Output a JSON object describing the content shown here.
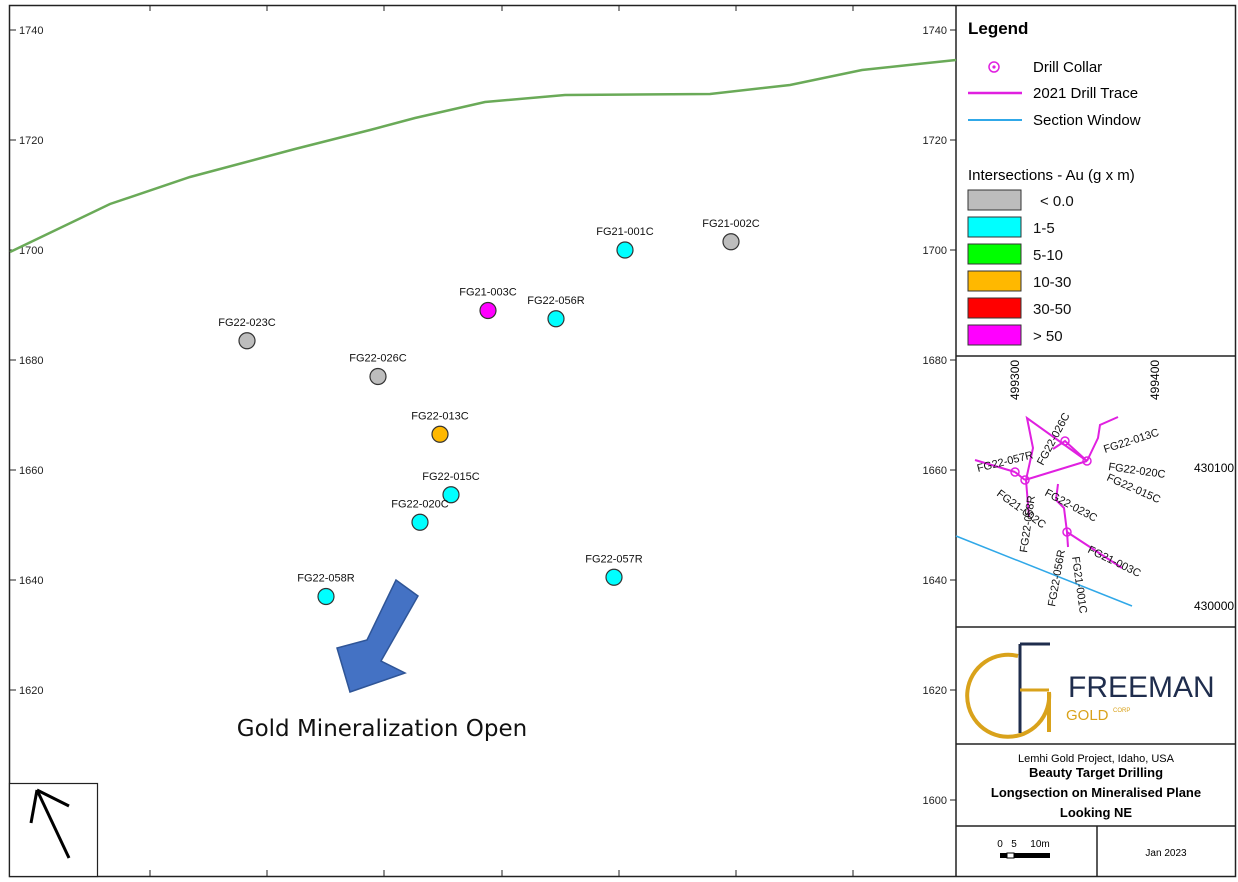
{
  "section": {
    "elevation_ticks": [
      "1740",
      "1720",
      "1700",
      "1680",
      "1660",
      "1640",
      "1620",
      "1600"
    ],
    "holes": [
      {
        "id": "FG21-001C",
        "elevation": 1700.0,
        "class": "1-5"
      },
      {
        "id": "FG21-002C",
        "elevation": 1701.5,
        "class": "< 0.0"
      },
      {
        "id": "FG21-003C",
        "elevation": 1689.0,
        "class": "> 50"
      },
      {
        "id": "FG22-056R",
        "elevation": 1687.5,
        "class": "1-5"
      },
      {
        "id": "FG22-023C",
        "elevation": 1683.5,
        "class": "< 0.0"
      },
      {
        "id": "FG22-026C",
        "elevation": 1677.0,
        "class": "< 0.0"
      },
      {
        "id": "FG22-013C",
        "elevation": 1666.5,
        "class": "10-30"
      },
      {
        "id": "FG22-015C",
        "elevation": 1655.5,
        "class": "1-5"
      },
      {
        "id": "FG22-020C",
        "elevation": 1650.5,
        "class": "1-5"
      },
      {
        "id": "FG22-057R",
        "elevation": 1640.5,
        "class": "1-5"
      },
      {
        "id": "FG22-058R",
        "elevation": 1637.0,
        "class": "1-5"
      }
    ],
    "annotation": "Gold Mineralization Open",
    "topography_color": "#6aaa58",
    "arrow_color": "#4472c4"
  },
  "legend": {
    "title": "Legend",
    "items": [
      {
        "label": "Drill Collar",
        "symbol": "collar-icon"
      },
      {
        "label": "2021 Drill Trace",
        "symbol": "line",
        "color": "#e020e0"
      },
      {
        "label": "Section Window",
        "symbol": "line",
        "color": "#30a8e8"
      }
    ],
    "intersections_title": "Intersections - Au (g x m)",
    "classes": [
      {
        "label": "< 0.0",
        "color": "#bdbdbd"
      },
      {
        "label": "1-5",
        "color": "#00ffff"
      },
      {
        "label": "5-10",
        "color": "#00ff00"
      },
      {
        "label": "10-30",
        "color": "#ffb800"
      },
      {
        "label": "30-50",
        "color": "#ff0000"
      },
      {
        "label": "> 50",
        "color": "#ff00ff"
      }
    ]
  },
  "inset": {
    "easting_labels": [
      "499300",
      "499400"
    ],
    "northing_labels": [
      "430100",
      "430000"
    ],
    "hole_labels": [
      "FG22-013C",
      "FG22-020C",
      "FG22-015C",
      "FG22-026C",
      "FG22-057R",
      "FG22-023C",
      "FG22-058R",
      "FG21-002C",
      "FG21-003C",
      "FG22-056R",
      "FG21-001C"
    ]
  },
  "logo": {
    "name": "FREEMAN",
    "sub": "GOLD",
    "corp": "CORP"
  },
  "title_block": {
    "project": "Lemhi Gold Project, Idaho, USA",
    "lines": [
      "Beauty Target Drilling",
      "Longsection on Mineralised Plane",
      "Looking NE"
    ]
  },
  "scale_bar": {
    "labels": [
      "0",
      "5",
      "10m"
    ]
  },
  "date": "Jan 2023",
  "north_arrow_icon": "north-arrow-icon"
}
